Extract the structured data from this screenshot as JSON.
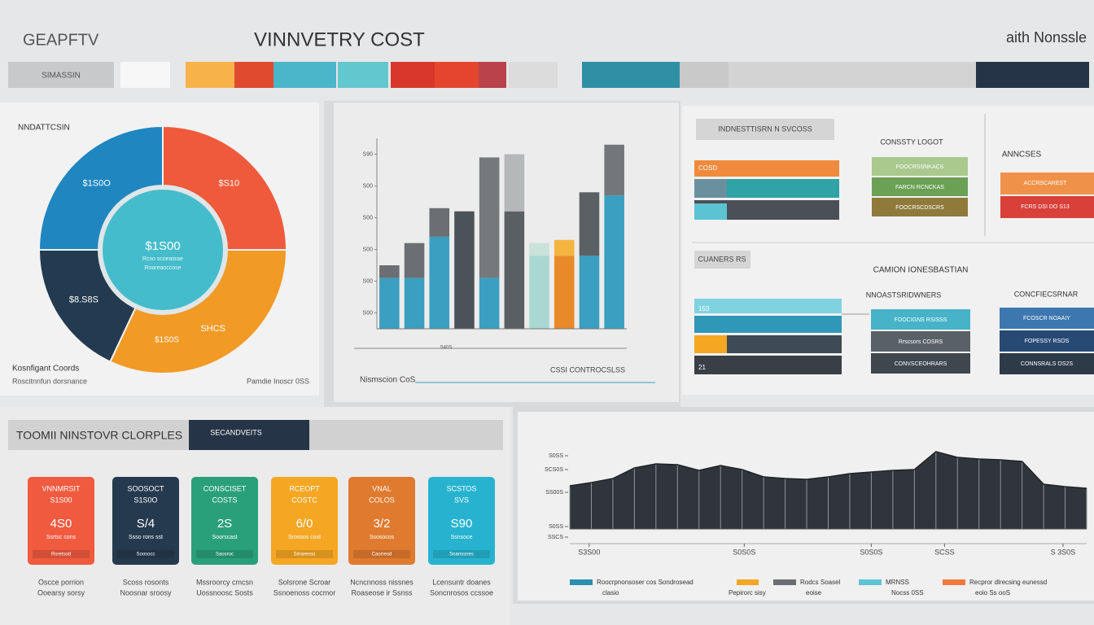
{
  "header": {
    "logo": "GEAPFTV",
    "title": "VINNVETRY COST",
    "account": "aith Nonssle"
  },
  "nav": {
    "search": "SIMASSIN"
  },
  "chart_data": [
    {
      "type": "pie",
      "title": "NNDATTCSIN",
      "categories": [
        "$S10",
        "SHCS",
        "$8.S8S",
        "$1S0O"
      ],
      "values": [
        25,
        32,
        18,
        25
      ],
      "colors": [
        "#ef5a3c",
        "#f29a26",
        "#233a50",
        "#1f86c0"
      ],
      "annotations": [
        "$1S0S"
      ],
      "center": {
        "value": "$1S00",
        "lines": [
          "Rcso scoeasrae",
          "Roareaoccose"
        ]
      },
      "notes": [
        "Kosnfigant Coords",
        "Roscitnnfun dorsnance",
        "Pamdie Inoscr 0SS"
      ]
    },
    {
      "type": "bar",
      "categories": [
        null,
        null,
        null,
        null,
        null,
        null,
        null,
        null,
        null,
        null
      ],
      "series": [
        {
          "values": [
            1.6,
            1.6,
            2.9,
            3.7,
            1.6,
            3.7,
            2.3,
            2.3,
            2.3,
            4.2
          ],
          "colors": [
            "#3a9fc0",
            "#3a9fc0",
            "#3a9fc0",
            "#4b5258",
            "#3a9fc0",
            "#5a5f64",
            "#a9d8d0",
            "#e88a2a",
            "#3a9fc0",
            "#3a9fc0"
          ]
        },
        {
          "values": [
            0.4,
            1.1,
            0.9,
            0,
            3.8,
            1.8,
            0.4,
            0.5,
            2.0,
            1.6
          ],
          "colors": [
            "#6b6f73",
            "#6b6f73",
            "#6b6f73",
            "#6b6f73",
            "#75797d",
            "#b5b7b9",
            "#c9e2da",
            "#f5b440",
            "#5b6064",
            "#73777b"
          ]
        }
      ],
      "ylim": [
        0,
        6
      ],
      "yticks": [
        {
          "value": 0.5,
          "label": "S00"
        },
        {
          "value": 1.5,
          "label": "S00"
        },
        {
          "value": 2.5,
          "label": "S00"
        },
        {
          "value": 3.5,
          "label": "S00"
        },
        {
          "value": 4.5,
          "label": "S00"
        },
        {
          "value": 5.5,
          "label": "S90"
        }
      ],
      "xlabel": "Nismscion CoS",
      "annotations": [
        "S40S",
        "CSSI CONTROCSLSS"
      ]
    },
    {
      "type": "area",
      "x": [
        0,
        1,
        2,
        3,
        4,
        5,
        6,
        7,
        8,
        9,
        10,
        11,
        12,
        13,
        14,
        15,
        16,
        17,
        18,
        19,
        20,
        21,
        22,
        23,
        24
      ],
      "values": [
        53,
        57,
        62,
        75,
        80,
        79,
        72,
        78,
        73,
        64,
        62,
        61,
        64,
        68,
        70,
        72,
        73,
        95,
        88,
        86,
        85,
        83,
        55,
        52,
        50
      ],
      "color": "#2f353b",
      "xlim": [
        0,
        24
      ],
      "xticks": [
        {
          "value": 0.9,
          "label": "S3S00"
        },
        {
          "value": 8.1,
          "label": "S0S0S"
        },
        {
          "value": 14,
          "label": "S0S0S"
        },
        {
          "value": 17.4,
          "label": "SCSS"
        },
        {
          "value": 22.9,
          "label": "S 3S0S"
        }
      ],
      "ylim": [
        -15,
        100
      ],
      "yticks": [
        {
          "value": 90,
          "label": "S0SS"
        },
        {
          "value": 73,
          "label": "SCS0S"
        },
        {
          "value": 45,
          "label": "SS00S"
        },
        {
          "value": 3,
          "label": "S0SS"
        },
        {
          "value": -10,
          "label": "SSCS"
        }
      ],
      "legend": [
        {
          "name": "Roocrpnonsoser cos Sondrosead",
          "note": "clasio",
          "color": "#2a8fb0"
        },
        {
          "name": "",
          "note": "Pepirorc sisy",
          "color": "#f5a623"
        },
        {
          "name": "Rodcs Soasel",
          "note": "eoise",
          "color": "#6b6f73"
        },
        {
          "name": "MRNSS",
          "note": "Nocss 0SS",
          "color": "#5cc3d3"
        },
        {
          "name": "Recpror dlrecsing eunessd",
          "note": "eoio Ss ooS",
          "color": "#f07a3c"
        }
      ]
    }
  ],
  "panels": {
    "top_header": "INDNESTTISRN   N SVCOSS",
    "top_bar_label": "COSD",
    "costy": {
      "title": "CONSSTY LOGOT",
      "items": [
        "FOOCRSSNKACS",
        "FARCN RCNCKAS",
        "FOOCRSCDSCRS"
      ]
    },
    "annexes": {
      "title": "ANNCSES",
      "items": [
        "ACCRSCAREST",
        "FCRS DSI DO S13"
      ]
    },
    "mid_header": "CUANERS RS",
    "mid_title": "CAMION IONESBASTIAN",
    "owners": {
      "title": "NNOASTSRIDWNERS",
      "items": [
        "FOOCIGNS RSISSS",
        "Rrscsors COSRS",
        "CONVSCEOHRARS"
      ]
    },
    "conf": {
      "title": "CONCFIECSRNAR",
      "items": [
        "FCOSCR NOAAIY",
        "FOPESSY RSOS",
        "CONNSRALS OS2S"
      ]
    },
    "stack_labels": [
      "153",
      "21"
    ]
  },
  "cards": {
    "title": "TOOMII NINSTOVR CLORPLES",
    "tab": "SECANDVEITS",
    "items": [
      {
        "color": "#f05a3f",
        "lines": [
          "VNNMRSIT",
          "S1S00",
          "4S0",
          "Ssrtsc cons",
          "Rsretsod"
        ],
        "caption": [
          "Oscce porrion",
          "Ooearsy sorsy"
        ]
      },
      {
        "color": "#263a4f",
        "lines": [
          "SOOSOCT",
          "S1S0O",
          "S/4",
          "Ssso rons sst",
          "Soosocc"
        ],
        "caption": [
          "Scoss rosonts",
          "Noosnar sroosy"
        ]
      },
      {
        "color": "#2aa07a",
        "lines": [
          "CONSCISET",
          "COSTS",
          "2S",
          "Soorscast",
          "Saosroc"
        ],
        "caption": [
          "Mssroorcy cmcsn",
          "Uossnoosc Sosts"
        ]
      },
      {
        "color": "#f5a623",
        "lines": [
          "RCEOPT",
          "COSTC",
          "6/0",
          "Srossos cost",
          "Sinaresso"
        ],
        "caption": [
          "Solsrone Scroar",
          "Ssnoenoss cocmor"
        ]
      },
      {
        "color": "#e07a2e",
        "lines": [
          "VNAL",
          "COLOS",
          "3/2",
          "Ssosocos",
          "Caorresd"
        ],
        "caption": [
          "Ncncnnoss nissnes",
          "Roaseose ir Ssnss"
        ]
      },
      {
        "color": "#27b3d0",
        "lines": [
          "SCSTOS",
          "SVS",
          "S90",
          "Ssnsoce",
          "Soanssnes"
        ],
        "caption": [
          "Lcensuntr doanes",
          "Soncnrosos ccssoe"
        ]
      }
    ]
  }
}
